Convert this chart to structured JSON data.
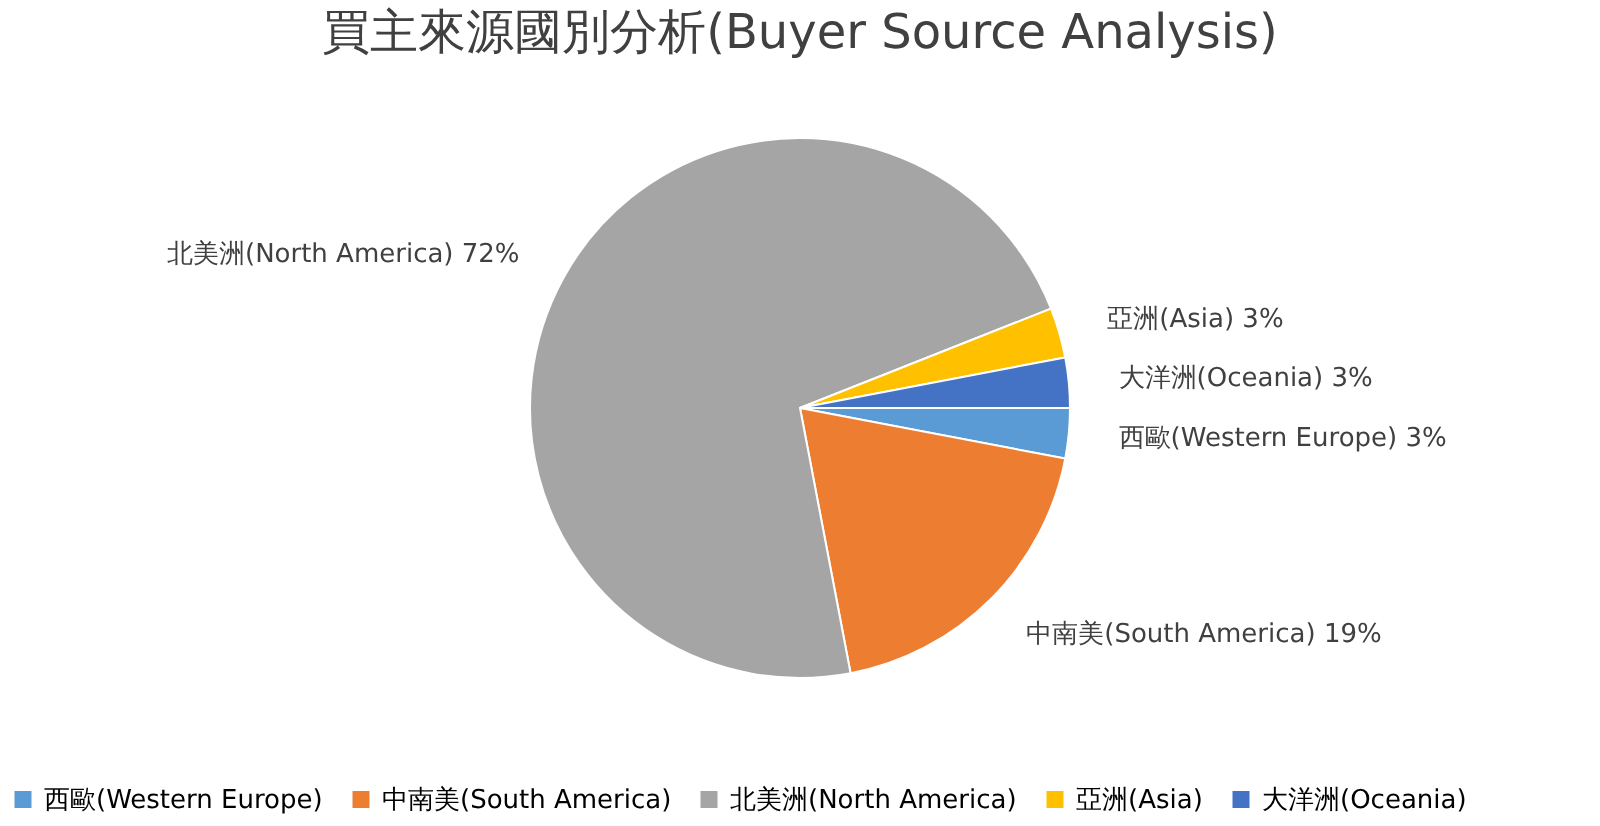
{
  "chart_data": {
    "type": "pie",
    "title": "買主來源國別分析(Buyer Source Analysis)",
    "categories": [
      "西歐(Western Europe)",
      "中南美(South America)",
      "北美洲(North America)",
      "亞洲(Asia)",
      "大洋洲(Oceania)"
    ],
    "values": [
      3,
      19,
      72,
      3,
      3
    ],
    "value_labels": [
      "3%",
      "19%",
      "72%",
      "3%",
      "3%"
    ],
    "colors": [
      "#5b9bd5",
      "#ed7d31",
      "#a5a5a5",
      "#ffc000",
      "#4472c4"
    ],
    "legend": "bottom"
  }
}
